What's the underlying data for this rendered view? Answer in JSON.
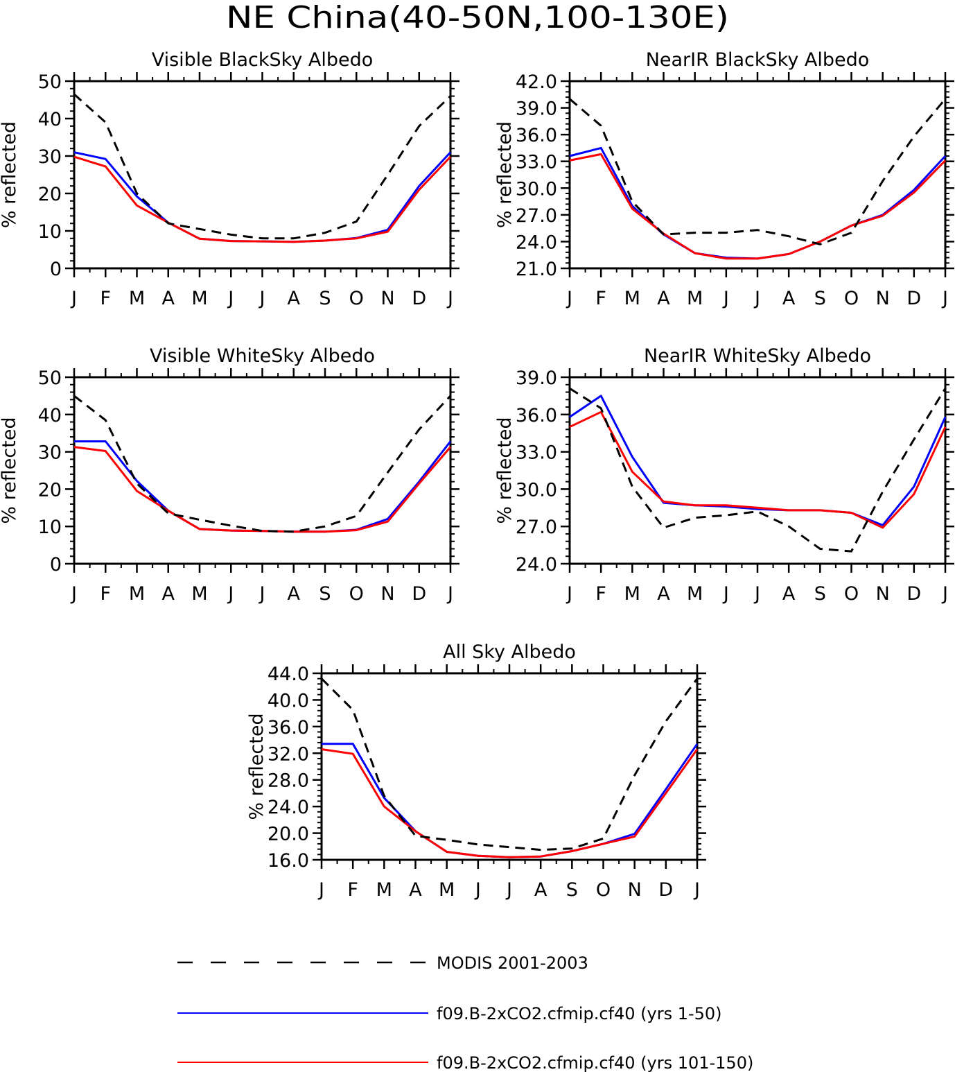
{
  "figure": {
    "title": "NE China(40-50N,100-130E)"
  },
  "legend": {
    "items": [
      {
        "label": "MODIS 2001-2003",
        "color": "#000000",
        "style": "dashed"
      },
      {
        "label": "f09.B-2xCO2.cfmip.cf40 (yrs 1-50)",
        "color": "#0000ff",
        "style": "solid"
      },
      {
        "label": "f09.B-2xCO2.cfmip.cf40 (yrs 101-150)",
        "color": "#ff0000",
        "style": "solid"
      }
    ]
  },
  "chart_data": [
    {
      "type": "line",
      "title": "Visible BlackSky Albedo",
      "ylabel": "% reflected",
      "xlabel": "",
      "categories": [
        "J",
        "F",
        "M",
        "A",
        "M",
        "J",
        "J",
        "A",
        "S",
        "O",
        "N",
        "D",
        "J"
      ],
      "ylim": [
        0,
        50
      ],
      "yticks": [
        "0",
        "10",
        "20",
        "30",
        "40",
        "50"
      ],
      "grid": false,
      "series": [
        {
          "ref": 0,
          "values": [
            46.5,
            39,
            20,
            12,
            10.5,
            9,
            8,
            8,
            9.5,
            12.5,
            25,
            38,
            46
          ]
        },
        {
          "ref": 1,
          "values": [
            31,
            29.2,
            19.2,
            12.2,
            7.9,
            7.3,
            7.2,
            7.1,
            7.4,
            8.1,
            10.3,
            22,
            31
          ]
        },
        {
          "ref": 2,
          "values": [
            29.8,
            27.2,
            16.8,
            12.2,
            7.9,
            7.3,
            7.2,
            7.1,
            7.4,
            8.0,
            9.8,
            21,
            29.8
          ]
        }
      ]
    },
    {
      "type": "line",
      "title": "NearIR BlackSky Albedo",
      "ylabel": "% reflected",
      "xlabel": "",
      "categories": [
        "J",
        "F",
        "M",
        "A",
        "M",
        "J",
        "J",
        "A",
        "S",
        "O",
        "N",
        "D",
        "J"
      ],
      "ylim": [
        21,
        42
      ],
      "yticks": [
        "21.0",
        "24.0",
        "27.0",
        "30.0",
        "33.0",
        "36.0",
        "39.0",
        "42.0"
      ],
      "grid": false,
      "series": [
        {
          "ref": 0,
          "values": [
            40.0,
            37.0,
            28.5,
            24.8,
            25.0,
            25.0,
            25.3,
            24.6,
            23.7,
            25.0,
            30.8,
            35.8,
            40.0
          ]
        },
        {
          "ref": 1,
          "values": [
            33.6,
            34.5,
            28.0,
            24.8,
            22.7,
            22.2,
            22.1,
            22.6,
            24.0,
            25.8,
            27.0,
            29.8,
            33.6
          ]
        },
        {
          "ref": 2,
          "values": [
            33.1,
            33.8,
            27.7,
            24.9,
            22.7,
            22.1,
            22.1,
            22.6,
            24.0,
            25.8,
            26.9,
            29.5,
            33.1
          ]
        }
      ]
    },
    {
      "type": "line",
      "title": "Visible WhiteSky Albedo",
      "ylabel": "% reflected",
      "xlabel": "",
      "categories": [
        "J",
        "F",
        "M",
        "A",
        "M",
        "J",
        "J",
        "A",
        "S",
        "O",
        "N",
        "D",
        "J"
      ],
      "ylim": [
        0,
        50
      ],
      "yticks": [
        "0",
        "10",
        "20",
        "30",
        "40",
        "50"
      ],
      "grid": false,
      "series": [
        {
          "ref": 0,
          "values": [
            45,
            38.5,
            21.5,
            13.5,
            11.8,
            10.2,
            8.8,
            8.6,
            10,
            12.8,
            24.5,
            36,
            45
          ]
        },
        {
          "ref": 1,
          "values": [
            32.8,
            32.8,
            22.2,
            14.2,
            9.3,
            8.9,
            8.8,
            8.6,
            8.6,
            9.1,
            12,
            22,
            32.8
          ]
        },
        {
          "ref": 2,
          "values": [
            31.3,
            30.2,
            19.5,
            14.2,
            9.3,
            8.9,
            8.8,
            8.6,
            8.6,
            9.0,
            11.3,
            21.5,
            31.3
          ]
        }
      ]
    },
    {
      "type": "line",
      "title": "NearIR WhiteSky Albedo",
      "ylabel": "% reflected",
      "xlabel": "",
      "categories": [
        "J",
        "F",
        "M",
        "A",
        "M",
        "J",
        "J",
        "A",
        "S",
        "O",
        "N",
        "D",
        "J"
      ],
      "ylim": [
        24,
        39
      ],
      "yticks": [
        "24.0",
        "27.0",
        "30.0",
        "33.0",
        "36.0",
        "39.0"
      ],
      "grid": false,
      "series": [
        {
          "ref": 0,
          "values": [
            38.1,
            36.5,
            30.2,
            26.9,
            27.7,
            27.9,
            28.2,
            27.0,
            25.2,
            25.0,
            29.8,
            34.0,
            38.1
          ]
        },
        {
          "ref": 1,
          "values": [
            35.8,
            37.5,
            32.6,
            28.9,
            28.7,
            28.6,
            28.4,
            28.3,
            28.3,
            28.1,
            27.1,
            30.2,
            35.8
          ]
        },
        {
          "ref": 2,
          "values": [
            35.0,
            36.2,
            31.4,
            29.0,
            28.7,
            28.7,
            28.5,
            28.3,
            28.3,
            28.1,
            26.9,
            29.6,
            35.0
          ]
        }
      ]
    },
    {
      "type": "line",
      "title": "All Sky Albedo",
      "ylabel": "% reflected",
      "xlabel": "",
      "categories": [
        "J",
        "F",
        "M",
        "A",
        "M",
        "J",
        "J",
        "A",
        "S",
        "O",
        "N",
        "D",
        "J"
      ],
      "ylim": [
        16,
        44
      ],
      "yticks": [
        "16.0",
        "20.0",
        "24.0",
        "28.0",
        "32.0",
        "36.0",
        "40.0",
        "44.0"
      ],
      "grid": false,
      "series": [
        {
          "ref": 0,
          "values": [
            43.2,
            38.5,
            25.6,
            19.6,
            19.0,
            18.3,
            17.9,
            17.5,
            17.7,
            19.2,
            28.7,
            36.8,
            43.2
          ]
        },
        {
          "ref": 1,
          "values": [
            33.4,
            33.4,
            25.3,
            20.3,
            17.2,
            16.6,
            16.4,
            16.5,
            17.3,
            18.4,
            19.9,
            26.6,
            33.4
          ]
        },
        {
          "ref": 2,
          "values": [
            32.6,
            31.9,
            24.0,
            20.3,
            17.2,
            16.6,
            16.4,
            16.5,
            17.3,
            18.4,
            19.5,
            26.0,
            32.6
          ]
        }
      ]
    }
  ]
}
